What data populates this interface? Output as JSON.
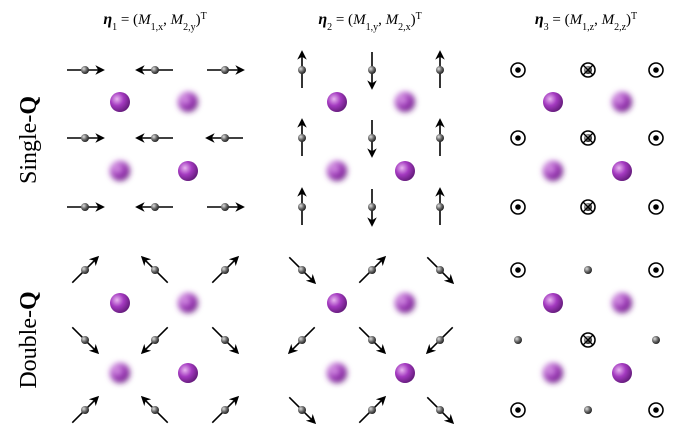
{
  "columns": [
    {
      "header": [
        "η",
        "1",
        " = (",
        "M",
        "1,x",
        ",  ",
        "M",
        "2,y",
        ")",
        "T"
      ]
    },
    {
      "header": [
        "η",
        "2",
        " = (",
        "M",
        "1,y",
        ",  ",
        "M",
        "2,x",
        ")",
        "T"
      ]
    },
    {
      "header": [
        "η",
        "3",
        " = (",
        "M",
        "1,z",
        ",  ",
        "M",
        "2,z",
        ")",
        "T"
      ]
    }
  ],
  "rows": [
    {
      "label": [
        "Single-",
        "Q"
      ]
    },
    {
      "label": [
        "Double-",
        "Q"
      ]
    }
  ]
}
